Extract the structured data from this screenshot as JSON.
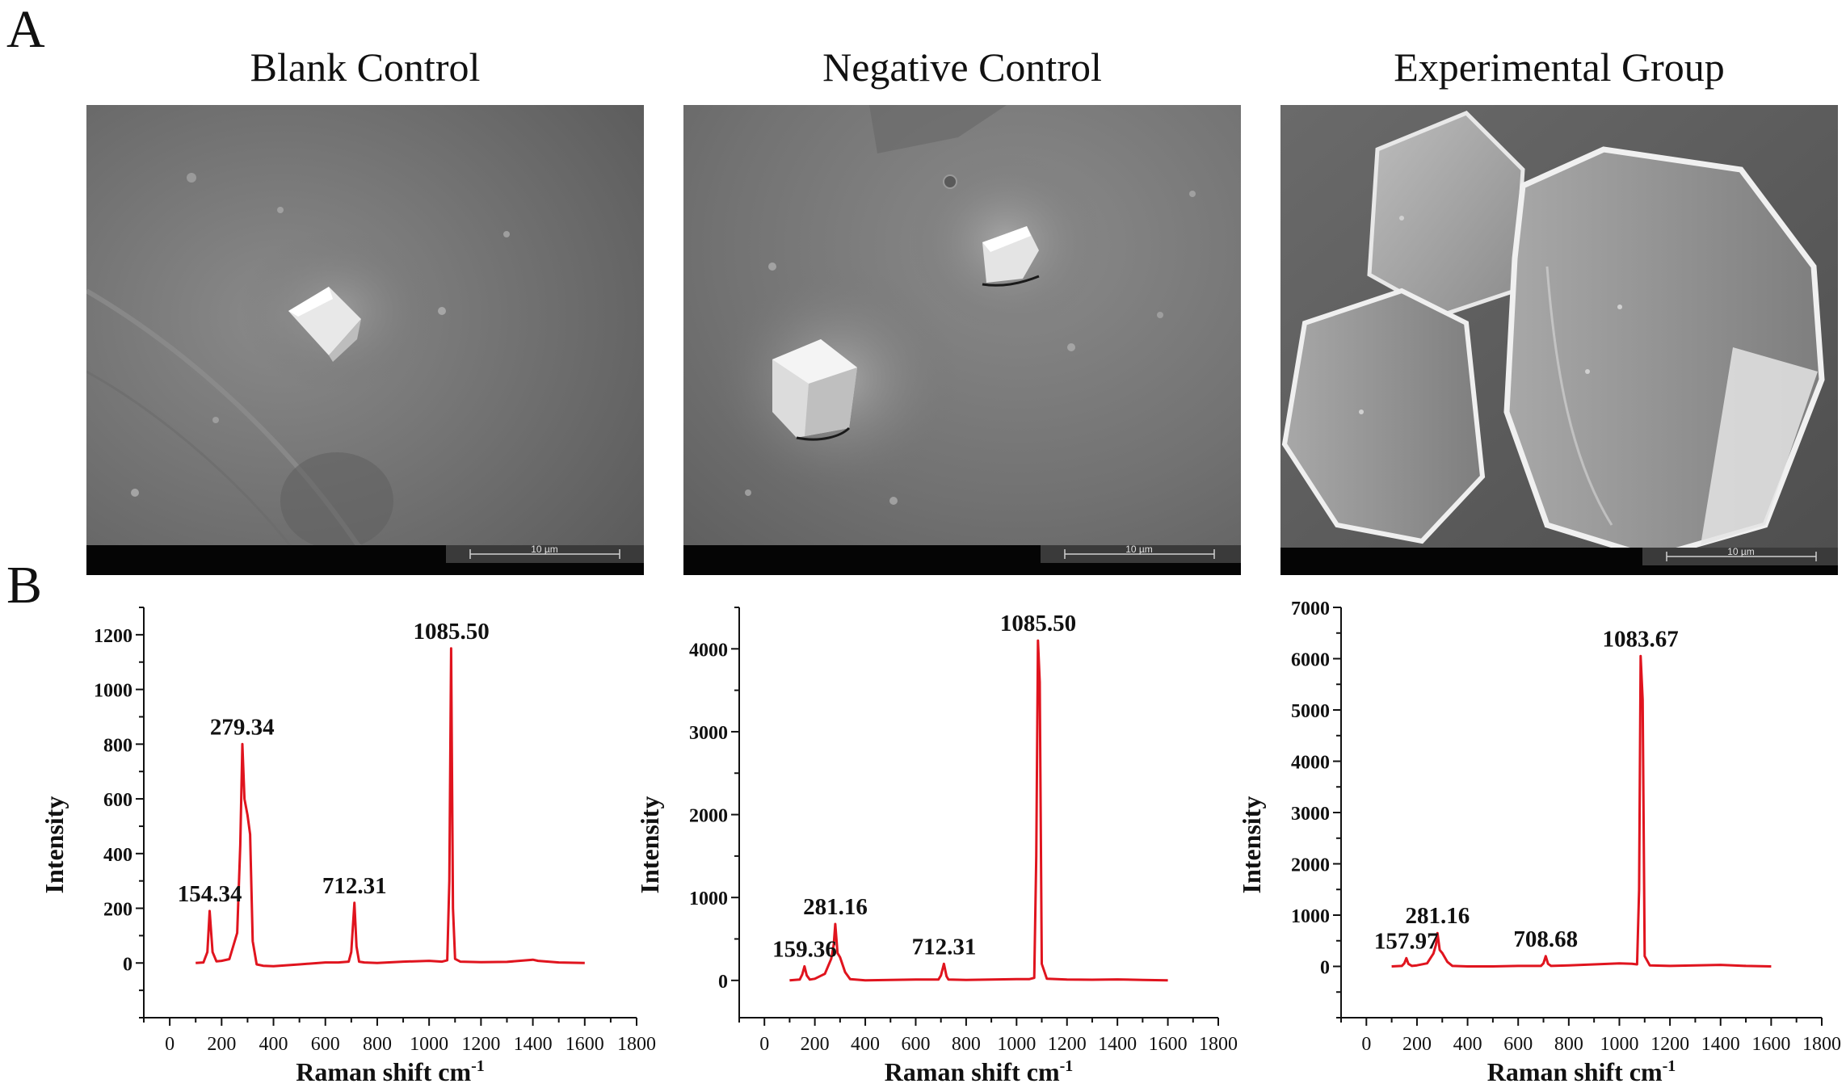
{
  "figure": {
    "panel_a_label": "A",
    "panel_b_label": "B"
  },
  "sem_panels": [
    {
      "title": "Blank Control",
      "scale_bar_label": "10 µm"
    },
    {
      "title": "Negative Control",
      "scale_bar_label": "10 µm"
    },
    {
      "title": "Experimental Group",
      "scale_bar_label": "10 µm"
    }
  ],
  "chart_data": [
    {
      "type": "line",
      "xlabel": "Raman shift cm",
      "xlabel_superscript": "-1",
      "ylabel": "Intensity",
      "xlim": [
        -100,
        1800
      ],
      "ylim": [
        -200,
        1300
      ],
      "xticks": [
        0,
        200,
        400,
        600,
        800,
        1000,
        1200,
        1400,
        1600,
        1800
      ],
      "yticks": [
        0,
        200,
        400,
        600,
        800,
        1000,
        1200
      ],
      "line_color": "#e0141e",
      "peak_labels": [
        {
          "text": "154.34",
          "x": 154.34,
          "y": 190
        },
        {
          "text": "279.34",
          "x": 279.34,
          "y": 800
        },
        {
          "text": "712.31",
          "x": 712.31,
          "y": 220
        },
        {
          "text": "1085.50",
          "x": 1085.5,
          "y": 1150
        }
      ],
      "series": [
        {
          "x": [
            100,
            130,
            145,
            154,
            165,
            180,
            200,
            230,
            260,
            272,
            280,
            288,
            300,
            310,
            320,
            335,
            360,
            400,
            500,
            600,
            650,
            690,
            700,
            712,
            720,
            730,
            750,
            800,
            900,
            1000,
            1050,
            1070,
            1078,
            1085,
            1092,
            1100,
            1120,
            1200,
            1300,
            1400,
            1420,
            1500,
            1600
          ],
          "y": [
            0,
            2,
            40,
            190,
            40,
            6,
            8,
            14,
            110,
            430,
            800,
            600,
            540,
            470,
            80,
            -5,
            -10,
            -12,
            -5,
            2,
            2,
            5,
            40,
            220,
            60,
            5,
            2,
            0,
            5,
            8,
            5,
            10,
            300,
            1150,
            200,
            15,
            5,
            3,
            4,
            12,
            8,
            2,
            0
          ]
        }
      ]
    },
    {
      "type": "line",
      "xlabel": "Raman shift cm",
      "xlabel_superscript": "-1",
      "ylabel": "Intensity",
      "xlim": [
        -100,
        1800
      ],
      "ylim": [
        -450,
        4500
      ],
      "xticks": [
        0,
        200,
        400,
        600,
        800,
        1000,
        1200,
        1400,
        1600,
        1800
      ],
      "yticks": [
        0,
        1000,
        2000,
        3000,
        4000
      ],
      "line_color": "#e0141e",
      "peak_labels": [
        {
          "text": "159.36",
          "x": 159.36,
          "y": 170
        },
        {
          "text": "281.16",
          "x": 281.16,
          "y": 680
        },
        {
          "text": "712.31",
          "x": 712.31,
          "y": 200
        },
        {
          "text": "1085.50",
          "x": 1085.5,
          "y": 4100
        }
      ],
      "series": [
        {
          "x": [
            100,
            140,
            150,
            159,
            168,
            180,
            200,
            240,
            265,
            275,
            281,
            290,
            300,
            320,
            340,
            400,
            500,
            600,
            690,
            700,
            712,
            722,
            730,
            800,
            900,
            1000,
            1050,
            1070,
            1078,
            1085,
            1092,
            1100,
            1120,
            1200,
            1300,
            1400,
            1500,
            1600
          ],
          "y": [
            0,
            10,
            70,
            170,
            60,
            10,
            20,
            80,
            260,
            430,
            680,
            330,
            280,
            100,
            15,
            0,
            5,
            10,
            10,
            60,
            200,
            50,
            10,
            5,
            10,
            15,
            15,
            30,
            1500,
            4100,
            3600,
            200,
            20,
            10,
            8,
            12,
            5,
            0
          ]
        }
      ]
    },
    {
      "type": "line",
      "xlabel": "Raman shift cm",
      "xlabel_superscript": "-1",
      "ylabel": "Intensity",
      "xlim": [
        -100,
        1800
      ],
      "ylim": [
        -1000,
        7000
      ],
      "xticks": [
        0,
        200,
        400,
        600,
        800,
        1000,
        1200,
        1400,
        1600,
        1800
      ],
      "yticks": [
        0,
        1000,
        2000,
        3000,
        4000,
        5000,
        6000,
        7000
      ],
      "line_color": "#e0141e",
      "peak_labels": [
        {
          "text": "157.97",
          "x": 157.97,
          "y": 160
        },
        {
          "text": "281.16",
          "x": 281.16,
          "y": 650
        },
        {
          "text": "708.68",
          "x": 708.68,
          "y": 200
        },
        {
          "text": "1083.67",
          "x": 1083.67,
          "y": 6050
        }
      ],
      "series": [
        {
          "x": [
            100,
            140,
            150,
            158,
            166,
            180,
            200,
            240,
            265,
            275,
            281,
            290,
            300,
            320,
            340,
            400,
            500,
            600,
            690,
            700,
            709,
            718,
            730,
            800,
            900,
            1000,
            1050,
            1070,
            1078,
            1084,
            1092,
            1100,
            1120,
            1200,
            1300,
            1400,
            1500,
            1600
          ],
          "y": [
            0,
            10,
            60,
            160,
            50,
            10,
            20,
            60,
            250,
            420,
            650,
            320,
            260,
            90,
            10,
            0,
            0,
            10,
            10,
            60,
            200,
            50,
            10,
            20,
            40,
            60,
            50,
            40,
            1500,
            6050,
            5200,
            200,
            20,
            10,
            20,
            30,
            10,
            0
          ]
        }
      ]
    }
  ]
}
